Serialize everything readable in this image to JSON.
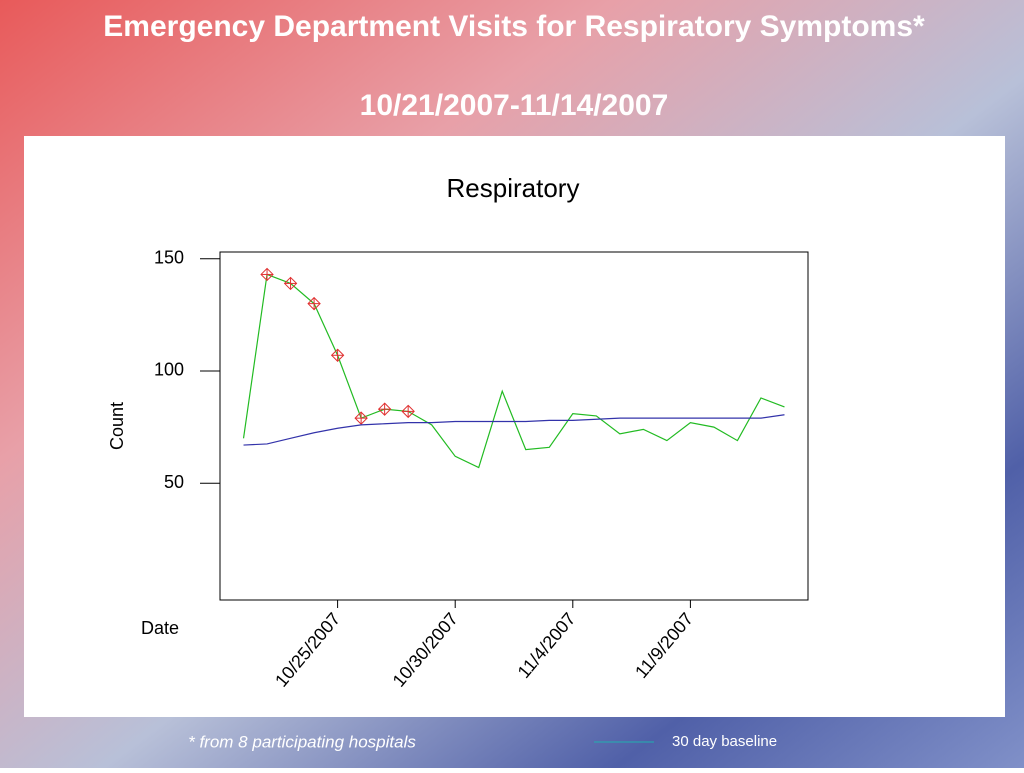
{
  "slide_title": [
    "Emergency Department Visits for Respiratory Symptoms*",
    "10/21/2007-11/14/2007"
  ],
  "footnote": "* from 8 participating hospitals",
  "chart_data": {
    "type": "line",
    "title": "Respiratory",
    "y_label": "Count",
    "x_label": "Date",
    "x": [
      "10/21/2007",
      "10/22/2007",
      "10/23/2007",
      "10/24/2007",
      "10/25/2007",
      "10/26/2007",
      "10/27/2007",
      "10/28/2007",
      "10/29/2007",
      "10/30/2007",
      "10/31/2007",
      "11/1/2007",
      "11/2/2007",
      "11/3/2007",
      "11/4/2007",
      "11/5/2007",
      "11/6/2007",
      "11/7/2007",
      "11/8/2007",
      "11/9/2007",
      "11/10/2007",
      "11/11/2007",
      "11/12/2007",
      "11/13/2007"
    ],
    "series": [
      {
        "color": "#22bb22",
        "values": [
          70,
          143,
          139,
          130,
          107,
          79,
          83,
          82,
          76,
          62,
          57,
          91,
          65,
          66,
          81,
          80,
          72,
          74,
          69,
          77,
          75,
          69,
          88,
          84
        ],
        "markers": [
          false,
          true,
          true,
          true,
          true,
          true,
          true,
          true,
          false,
          false,
          false,
          false,
          false,
          false,
          false,
          false,
          false,
          false,
          false,
          false,
          false,
          false,
          false,
          false
        ],
        "marker_color": "#e03030"
      },
      {
        "name": "30 day baseline",
        "color": "#3333aa",
        "legend_color": "#20b0b0",
        "values": [
          67,
          67.5,
          70,
          72.5,
          74.5,
          76,
          76.5,
          77,
          77,
          77.5,
          77.5,
          77.5,
          77.5,
          78,
          78,
          78.5,
          79,
          79,
          79,
          79,
          79,
          79,
          79,
          80.5
        ]
      }
    ],
    "xlim": [
      "10/20/2007",
      "11/14/2007"
    ],
    "xticks": [
      "10/25/2007",
      "10/30/2007",
      "11/4/2007",
      "11/9/2007"
    ],
    "ylim": [
      -2,
      153
    ],
    "yticks": [
      50,
      100,
      150
    ]
  }
}
